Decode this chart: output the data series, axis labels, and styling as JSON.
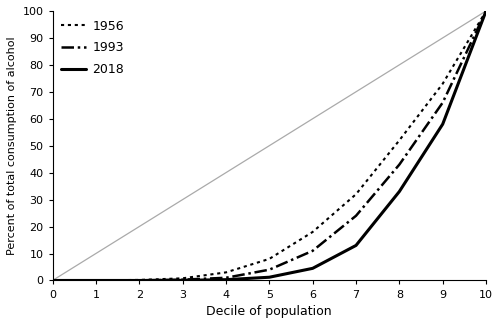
{
  "xlabel": "Decile of population",
  "ylabel": "Percent of total consumption of alcohol",
  "xlim": [
    0,
    10
  ],
  "ylim": [
    0,
    100
  ],
  "xticks": [
    0,
    1,
    2,
    3,
    4,
    5,
    6,
    7,
    8,
    9,
    10
  ],
  "yticks": [
    0,
    10,
    20,
    30,
    40,
    50,
    60,
    70,
    80,
    90,
    100
  ],
  "diagonal_color": "#aaaaaa",
  "series": [
    {
      "label": "1956",
      "linestyle": "dotted",
      "color": "#000000",
      "linewidth": 1.5,
      "x": [
        0,
        1,
        2,
        3,
        4,
        5,
        6,
        7,
        8,
        9,
        10
      ],
      "y": [
        0,
        0.05,
        0.2,
        0.8,
        3.0,
        8.0,
        18.0,
        32.0,
        52.0,
        73.0,
        100
      ]
    },
    {
      "label": "1993",
      "linestyle": "dashed",
      "color": "#000000",
      "linewidth": 1.8,
      "x": [
        0,
        1,
        2,
        3,
        4,
        5,
        6,
        7,
        8,
        9,
        10
      ],
      "y": [
        0,
        0.02,
        0.05,
        0.3,
        1.0,
        4.0,
        11.0,
        24.0,
        43.0,
        66.0,
        100
      ]
    },
    {
      "label": "2018",
      "linestyle": "solid",
      "color": "#000000",
      "linewidth": 2.2,
      "x": [
        0,
        1,
        2,
        3,
        4,
        5,
        6,
        7,
        8,
        9,
        10
      ],
      "y": [
        0,
        0.0,
        0.0,
        0.05,
        0.3,
        1.2,
        4.5,
        13.0,
        33.0,
        58.0,
        100
      ]
    }
  ],
  "legend_loc": "upper left",
  "legend_fontsize": 9,
  "legend_labelspacing": 0.7,
  "legend_handlelength": 2.0,
  "background_color": "#ffffff",
  "figsize": [
    5.0,
    3.25
  ],
  "dpi": 100
}
